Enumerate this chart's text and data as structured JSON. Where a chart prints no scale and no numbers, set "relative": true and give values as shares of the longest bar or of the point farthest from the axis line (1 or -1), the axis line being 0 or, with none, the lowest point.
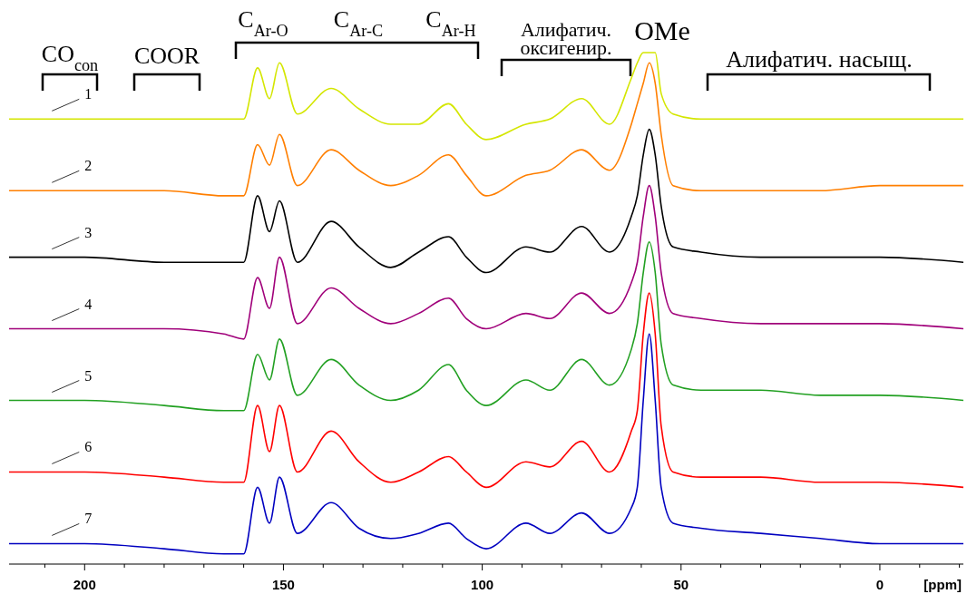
{
  "chart_data": {
    "type": "line",
    "relative": true,
    "xlabel": "[ppm]",
    "xlim": [
      219,
      -21
    ],
    "xticks": [
      {
        "value": 210,
        "label": null
      },
      200,
      {
        "value": 190,
        "label": null
      },
      {
        "value": 180,
        "label": null
      },
      {
        "value": 170,
        "label": null
      },
      {
        "value": 160,
        "label": null
      },
      150,
      {
        "value": 140,
        "label": null
      },
      {
        "value": 130,
        "label": null
      },
      {
        "value": 120,
        "label": null
      },
      {
        "value": 110,
        "label": null
      },
      100,
      {
        "value": 90,
        "label": null
      },
      {
        "value": 80,
        "label": null
      },
      {
        "value": 70,
        "label": null
      },
      {
        "value": 60,
        "label": null
      },
      50,
      {
        "value": 40,
        "label": null
      },
      {
        "value": 30,
        "label": null
      },
      {
        "value": 20,
        "label": null
      },
      {
        "value": 10,
        "label": null
      },
      0,
      {
        "value": -10,
        "label": null
      },
      {
        "value": -20,
        "label": null
      }
    ],
    "x": [
      219,
      200,
      180,
      165,
      160,
      156.5,
      153.5,
      151,
      146.5,
      138,
      131,
      123,
      116,
      108.5,
      104,
      99,
      89,
      83,
      75,
      68,
      62.5,
      61,
      59.5,
      58,
      56.5,
      55,
      52,
      45,
      30,
      15,
      0,
      -21
    ],
    "series": [
      {
        "name": "1",
        "color": "#d4e600",
        "values": [
          0.87,
          0.87,
          0.87,
          0.87,
          0.87,
          0.97,
          0.91,
          0.98,
          0.88,
          0.93,
          0.89,
          0.86,
          0.86,
          0.9,
          0.86,
          0.83,
          0.86,
          0.87,
          0.91,
          0.86,
          0.95,
          0.98,
          1,
          1,
          1,
          0.92,
          0.88,
          0.87,
          0.87,
          0.87,
          0.87,
          0.87
        ]
      },
      {
        "name": "2",
        "color": "#ff7f00",
        "values": [
          0.73,
          0.73,
          0.73,
          0.72,
          0.72,
          0.82,
          0.78,
          0.84,
          0.74,
          0.81,
          0.77,
          0.74,
          0.76,
          0.8,
          0.76,
          0.72,
          0.76,
          0.77,
          0.81,
          0.77,
          0.86,
          0.9,
          0.94,
          0.98,
          0.94,
          0.84,
          0.74,
          0.73,
          0.73,
          0.73,
          0.74,
          0.74
        ]
      },
      {
        "name": "3",
        "color": "#000000",
        "values": [
          0.6,
          0.6,
          0.59,
          0.59,
          0.59,
          0.72,
          0.65,
          0.71,
          0.59,
          0.67,
          0.62,
          0.58,
          0.61,
          0.64,
          0.6,
          0.57,
          0.62,
          0.61,
          0.66,
          0.61,
          0.68,
          0.72,
          0.8,
          0.85,
          0.8,
          0.7,
          0.62,
          0.61,
          0.6,
          0.6,
          0.6,
          0.59
        ]
      },
      {
        "name": "4",
        "color": "#a0007a",
        "values": [
          0.46,
          0.46,
          0.46,
          0.45,
          0.44,
          0.56,
          0.5,
          0.6,
          0.47,
          0.54,
          0.5,
          0.47,
          0.49,
          0.52,
          0.48,
          0.46,
          0.49,
          0.48,
          0.53,
          0.49,
          0.55,
          0.59,
          0.68,
          0.74,
          0.68,
          0.57,
          0.49,
          0.48,
          0.47,
          0.47,
          0.47,
          0.46
        ]
      },
      {
        "name": "5",
        "color": "#22a022",
        "values": [
          0.32,
          0.32,
          0.31,
          0.3,
          0.3,
          0.41,
          0.36,
          0.44,
          0.33,
          0.4,
          0.35,
          0.32,
          0.34,
          0.39,
          0.34,
          0.31,
          0.36,
          0.34,
          0.4,
          0.35,
          0.42,
          0.47,
          0.57,
          0.63,
          0.57,
          0.43,
          0.35,
          0.34,
          0.34,
          0.33,
          0.33,
          0.32
        ]
      },
      {
        "name": "6",
        "color": "#ff0000",
        "values": [
          0.18,
          0.18,
          0.17,
          0.16,
          0.16,
          0.31,
          0.22,
          0.31,
          0.18,
          0.26,
          0.2,
          0.16,
          0.18,
          0.21,
          0.18,
          0.15,
          0.2,
          0.19,
          0.24,
          0.18,
          0.26,
          0.3,
          0.45,
          0.53,
          0.45,
          0.27,
          0.18,
          0.17,
          0.17,
          0.16,
          0.16,
          0.15
        ]
      },
      {
        "name": "7",
        "color": "#0000c0",
        "values": [
          0.04,
          0.04,
          0.03,
          0.02,
          0.02,
          0.15,
          0.08,
          0.17,
          0.06,
          0.12,
          0.07,
          0.05,
          0.06,
          0.08,
          0.05,
          0.03,
          0.08,
          0.06,
          0.1,
          0.06,
          0.11,
          0.15,
          0.32,
          0.45,
          0.32,
          0.15,
          0.08,
          0.07,
          0.06,
          0.05,
          0.04,
          0.04
        ]
      }
    ],
    "annotations": [
      "CO$_{con}$",
      "COOR",
      "C$_{Ar-O}$",
      "C$_{Ar-C}$",
      "C$_{Ar-H}$",
      "Алифатич.\nоксигенир.",
      "OMe",
      "Алифатич. насыщ."
    ]
  }
}
